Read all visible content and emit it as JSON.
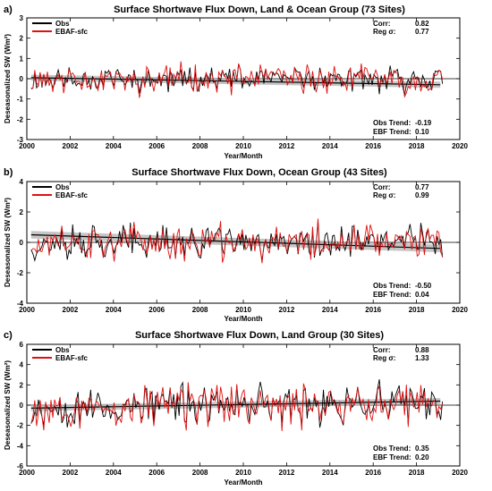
{
  "chart_data": [
    {
      "type": "line",
      "panel_label": "a)",
      "title": "Surface Shortwave Flux Down, Land & Ocean Group (73 Sites)",
      "xlabel": "Year/Month",
      "ylabel": "Deseasonalized SW (Wm²)",
      "xlim": [
        2000,
        2020
      ],
      "ylim": [
        -3,
        3
      ],
      "x_ticks": [
        2000,
        2002,
        2004,
        2006,
        2008,
        2010,
        2012,
        2014,
        2016,
        2018,
        2020
      ],
      "y_ticks": [
        -3,
        -2,
        -1,
        0,
        1,
        2,
        3
      ],
      "x_tick_labels": [
        "2000",
        "2002",
        "2004",
        "2006",
        "2008",
        "2010",
        "2012",
        "2014",
        "2016",
        "2018",
        "2020"
      ],
      "y_tick_labels": [
        "-3",
        "-2",
        "-1",
        "0",
        "1",
        "2",
        "3"
      ],
      "legend": [
        {
          "name": "Obs",
          "color": "#000000"
        },
        {
          "name": "EBAF-sfc",
          "color": "#e01010"
        }
      ],
      "legend_position": "top-left",
      "stats": [
        {
          "label": "Corr:",
          "value": "0.82"
        },
        {
          "label": "Reg σ:",
          "value": "0.77"
        }
      ],
      "trends": [
        {
          "label": "Obs Trend:",
          "value": "-0.19"
        },
        {
          "label": "EBF Trend:",
          "value": "0.10"
        }
      ],
      "trend_line": {
        "start": [
          2000.2,
          0.05
        ],
        "end": [
          2019.1,
          -0.3
        ],
        "band": 0.15
      },
      "series": [
        {
          "name": "Obs",
          "color": "#000000",
          "amplitude": 0.5,
          "seed": 11
        },
        {
          "name": "EBAF-sfc",
          "color": "#e01010",
          "amplitude": 0.55,
          "seed": 23
        }
      ]
    },
    {
      "type": "line",
      "panel_label": "b)",
      "title": "Surface Shortwave Flux Down, Ocean Group (43 Sites)",
      "xlabel": "Year/Month",
      "ylabel": "Deseasonalized SW (Wm²)",
      "xlim": [
        2000,
        2020
      ],
      "ylim": [
        -4,
        4
      ],
      "x_ticks": [
        2000,
        2002,
        2004,
        2006,
        2008,
        2010,
        2012,
        2014,
        2016,
        2018,
        2020
      ],
      "y_ticks": [
        -4,
        -2,
        0,
        2,
        4
      ],
      "x_tick_labels": [
        "2000",
        "2002",
        "2004",
        "2006",
        "2008",
        "2010",
        "2012",
        "2014",
        "2016",
        "2018",
        "2020"
      ],
      "y_tick_labels": [
        "-4",
        "-2",
        "0",
        "2",
        "4"
      ],
      "legend": [
        {
          "name": "Obs",
          "color": "#000000"
        },
        {
          "name": "EBAF-sfc",
          "color": "#e01010"
        }
      ],
      "legend_position": "top-left",
      "stats": [
        {
          "label": "Corr:",
          "value": "0.77"
        },
        {
          "label": "Reg σ:",
          "value": "0.99"
        }
      ],
      "trends": [
        {
          "label": "Obs Trend:",
          "value": "-0.50"
        },
        {
          "label": "EBF Trend:",
          "value": "0.04"
        }
      ],
      "trend_line": {
        "start": [
          2000.2,
          0.5
        ],
        "end": [
          2019.1,
          -0.4
        ],
        "band": 0.25
      },
      "series": [
        {
          "name": "Obs",
          "color": "#000000",
          "amplitude": 0.9,
          "seed": 37
        },
        {
          "name": "EBAF-sfc",
          "color": "#e01010",
          "amplitude": 1.0,
          "seed": 41
        }
      ]
    },
    {
      "type": "line",
      "panel_label": "c)",
      "title": "Surface Shortwave Flux Down, Land Group (30 Sites)",
      "xlabel": "Year/Month",
      "ylabel": "Deseasonalized SW (Wm²)",
      "xlim": [
        2000,
        2020
      ],
      "ylim": [
        -6,
        6
      ],
      "x_ticks": [
        2000,
        2002,
        2004,
        2006,
        2008,
        2010,
        2012,
        2014,
        2016,
        2018,
        2020
      ],
      "y_ticks": [
        -6,
        -4,
        -2,
        0,
        2,
        4,
        6
      ],
      "x_tick_labels": [
        "2000",
        "2002",
        "2004",
        "2006",
        "2008",
        "2010",
        "2012",
        "2014",
        "2016",
        "2018",
        "2020"
      ],
      "y_tick_labels": [
        "-6",
        "-4",
        "-2",
        "0",
        "2",
        "4",
        "6"
      ],
      "legend": [
        {
          "name": "Obs",
          "color": "#000000"
        },
        {
          "name": "EBAF-sfc",
          "color": "#e01010"
        }
      ],
      "legend_position": "top-left",
      "stats": [
        {
          "label": "Corr:",
          "value": "0.88"
        },
        {
          "label": "Reg σ:",
          "value": "1.33"
        }
      ],
      "trends": [
        {
          "label": "Obs Trend:",
          "value": "0.35"
        },
        {
          "label": "EBF Trend:",
          "value": "0.20"
        }
      ],
      "trend_line": {
        "start": [
          2000.2,
          -0.3
        ],
        "end": [
          2019.1,
          0.4
        ],
        "band": 0.3
      },
      "series": [
        {
          "name": "Obs",
          "color": "#000000",
          "amplitude": 1.6,
          "seed": 53
        },
        {
          "name": "EBAF-sfc",
          "color": "#e01010",
          "amplitude": 1.7,
          "seed": 67
        }
      ]
    }
  ]
}
